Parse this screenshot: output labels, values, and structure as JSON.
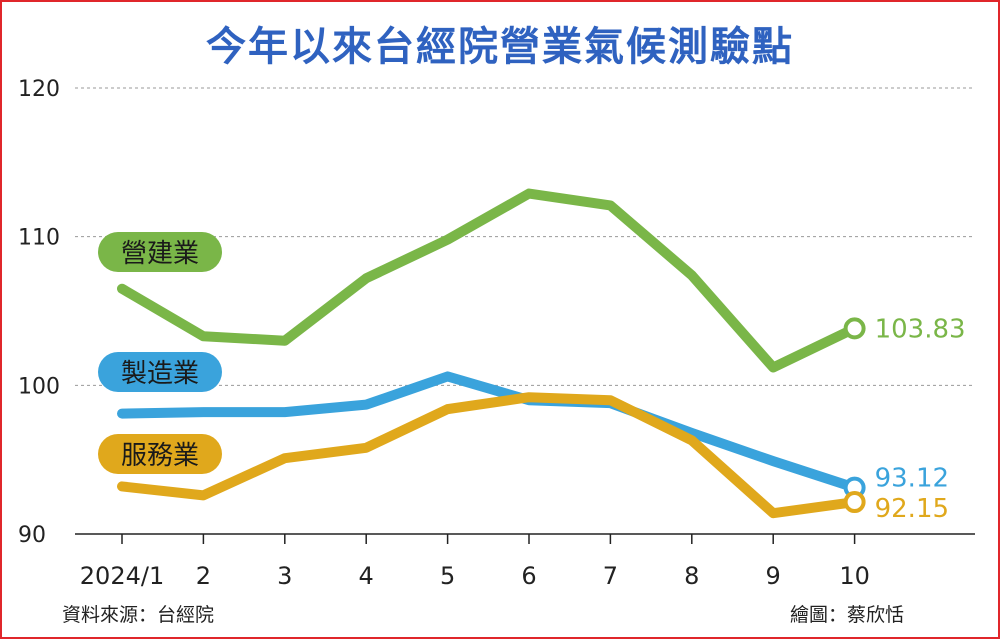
{
  "chart_data": {
    "type": "line",
    "title": "今年以來台經院營業氣候測驗點",
    "categories": [
      "2024/1",
      "2",
      "3",
      "4",
      "5",
      "6",
      "7",
      "8",
      "9",
      "10"
    ],
    "yticks": [
      "90",
      "100",
      "110",
      "120"
    ],
    "ylim": [
      90,
      120
    ],
    "grid": true,
    "series": [
      {
        "name": "營建業",
        "color": "#7ab648",
        "values": [
          106.5,
          103.3,
          103.0,
          107.2,
          109.8,
          112.9,
          112.1,
          107.4,
          101.2,
          103.83
        ],
        "end_label": "103.83"
      },
      {
        "name": "製造業",
        "color": "#3aa3dc",
        "values": [
          98.1,
          98.2,
          98.2,
          98.7,
          100.6,
          99.0,
          98.8,
          96.8,
          94.9,
          93.12
        ],
        "end_label": "93.12"
      },
      {
        "name": "服務業",
        "color": "#e0a81c",
        "values": [
          93.2,
          92.6,
          95.1,
          95.8,
          98.4,
          99.2,
          99.0,
          96.3,
          91.4,
          92.15
        ],
        "end_label": "92.15"
      }
    ]
  },
  "footer": {
    "source": "資料來源：台經院",
    "credit": "繪圖：蔡欣恬"
  }
}
